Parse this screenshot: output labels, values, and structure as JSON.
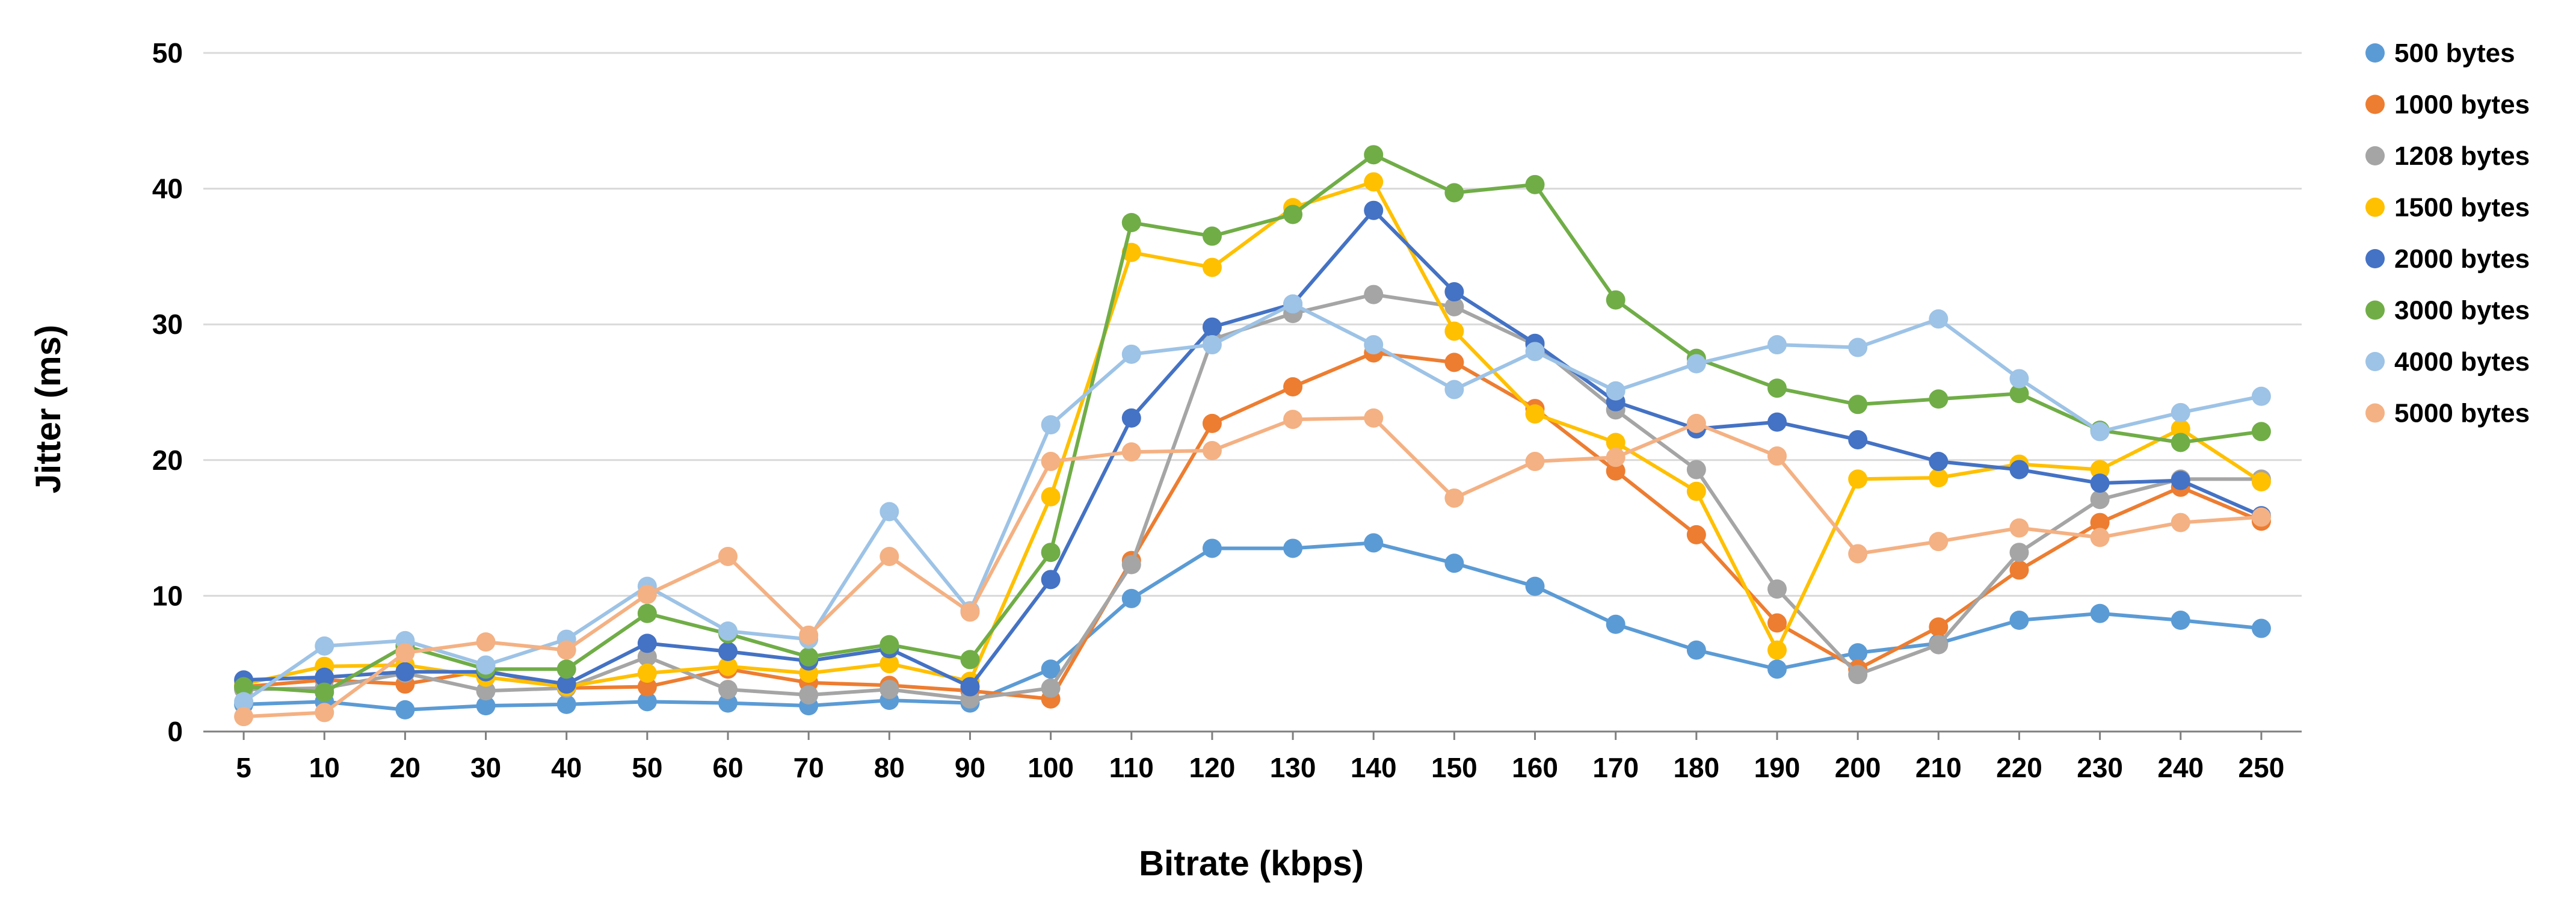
{
  "chart_data": {
    "type": "line",
    "title": "",
    "xlabel": "Bitrate (kbps)",
    "ylabel": "Jitter (ms)",
    "ylim": [
      0,
      50
    ],
    "yticks": [
      0,
      10,
      20,
      30,
      40,
      50
    ],
    "grid": "horizontal",
    "legend": "right",
    "categories": [
      "5",
      "10",
      "20",
      "30",
      "40",
      "50",
      "60",
      "70",
      "80",
      "90",
      "100",
      "110",
      "120",
      "130",
      "140",
      "150",
      "160",
      "170",
      "180",
      "190",
      "200",
      "210",
      "220",
      "230",
      "240",
      "250"
    ],
    "series": [
      {
        "name": "500 bytes",
        "color": "#5b9bd5",
        "values": [
          2.0,
          2.2,
          1.6,
          1.9,
          2.0,
          2.2,
          2.1,
          1.9,
          2.3,
          2.1,
          4.6,
          9.8,
          13.5,
          13.5,
          13.9,
          12.4,
          10.7,
          7.9,
          6.0,
          4.6,
          5.8,
          6.5,
          8.2,
          8.7,
          8.2,
          7.6
        ]
      },
      {
        "name": "1000 bytes",
        "color": "#ed7d31",
        "values": [
          3.3,
          3.8,
          3.5,
          4.5,
          3.2,
          3.3,
          4.6,
          3.6,
          3.4,
          3.0,
          2.4,
          12.6,
          22.7,
          25.4,
          27.9,
          27.2,
          23.8,
          19.2,
          14.5,
          8.0,
          4.6,
          7.7,
          11.9,
          15.4,
          18.0,
          15.5
        ]
      },
      {
        "name": "1208 bytes",
        "color": "#a5a5a5",
        "values": [
          3.1,
          3.2,
          4.3,
          3.0,
          3.2,
          5.5,
          3.1,
          2.7,
          3.1,
          2.4,
          3.2,
          12.3,
          28.9,
          30.8,
          32.2,
          31.3,
          28.5,
          23.7,
          19.3,
          10.5,
          4.2,
          6.4,
          13.2,
          17.1,
          18.6,
          18.6
        ]
      },
      {
        "name": "1500 bytes",
        "color": "#ffc000",
        "values": [
          3.5,
          4.8,
          4.9,
          4.0,
          3.3,
          4.3,
          4.8,
          4.3,
          5.0,
          3.7,
          17.3,
          35.3,
          34.2,
          38.6,
          40.5,
          29.5,
          23.4,
          21.3,
          17.7,
          6.0,
          18.6,
          18.7,
          19.7,
          19.3,
          22.3,
          18.4
        ]
      },
      {
        "name": "2000 bytes",
        "color": "#4472c4",
        "values": [
          3.8,
          4.0,
          4.4,
          4.4,
          3.5,
          6.5,
          5.9,
          5.2,
          6.1,
          3.3,
          11.2,
          23.1,
          29.8,
          31.5,
          38.4,
          32.4,
          28.6,
          24.3,
          22.3,
          22.8,
          21.5,
          19.9,
          19.3,
          18.3,
          18.5,
          15.9
        ]
      },
      {
        "name": "3000 bytes",
        "color": "#70ad47",
        "values": [
          3.3,
          2.9,
          6.3,
          4.6,
          4.6,
          8.7,
          7.2,
          5.5,
          6.4,
          5.3,
          13.2,
          37.5,
          36.5,
          38.1,
          42.5,
          39.7,
          40.3,
          31.8,
          27.5,
          25.3,
          24.1,
          24.5,
          24.9,
          22.2,
          21.3,
          22.1
        ]
      },
      {
        "name": "4000 bytes",
        "color": "#9dc3e6",
        "values": [
          2.2,
          6.3,
          6.7,
          4.9,
          6.8,
          10.7,
          7.4,
          6.8,
          16.2,
          8.9,
          22.6,
          27.8,
          28.5,
          31.5,
          28.5,
          25.2,
          28.0,
          25.1,
          27.1,
          28.5,
          28.3,
          30.4,
          26.0,
          22.1,
          23.5,
          24.7
        ]
      },
      {
        "name": "5000 bytes",
        "color": "#f4b183",
        "values": [
          1.1,
          1.4,
          5.8,
          6.6,
          6.0,
          10.1,
          12.9,
          7.1,
          12.9,
          8.8,
          19.9,
          20.6,
          20.7,
          23.0,
          23.1,
          17.2,
          19.9,
          20.2,
          22.7,
          20.3,
          13.1,
          14.0,
          15.0,
          14.3,
          15.4,
          15.8
        ]
      }
    ]
  }
}
